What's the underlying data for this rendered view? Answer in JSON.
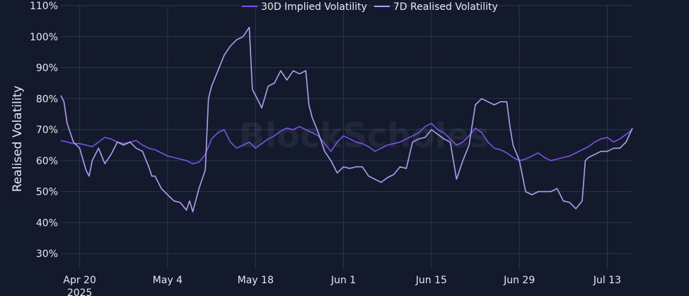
{
  "chart_data": {
    "type": "line",
    "title": "",
    "xlabel": "",
    "ylabel": "Realised Volatility",
    "y_unit": "%",
    "ylim": [
      25,
      110
    ],
    "xlim": [
      "2025-04-17",
      "2025-07-17"
    ],
    "grid": true,
    "legend_position": "top",
    "background_color": "#131a2c",
    "grid_color": "#2a3650",
    "x_ticks": [
      {
        "date": "2025-04-20",
        "label": "Apr 20",
        "sublabel": "2025"
      },
      {
        "date": "2025-05-04",
        "label": "May 4"
      },
      {
        "date": "2025-05-18",
        "label": "May 18"
      },
      {
        "date": "2025-06-01",
        "label": "Jun 1"
      },
      {
        "date": "2025-06-15",
        "label": "Jun 15"
      },
      {
        "date": "2025-06-29",
        "label": "Jun 29"
      },
      {
        "date": "2025-07-13",
        "label": "Jul 13"
      }
    ],
    "y_ticks": [
      {
        "value": 30,
        "label": "30%"
      },
      {
        "value": 40,
        "label": "40%"
      },
      {
        "value": 50,
        "label": "50%"
      },
      {
        "value": 60,
        "label": "60%"
      },
      {
        "value": 70,
        "label": "70%"
      },
      {
        "value": 80,
        "label": "80%"
      },
      {
        "value": 90,
        "label": "90%"
      },
      {
        "value": 100,
        "label": "100%"
      },
      {
        "value": 110,
        "label": "110%"
      }
    ],
    "series": [
      {
        "name": "30D Implied Volatility",
        "color": "#7b52e6",
        "points": [
          [
            "2025-04-17",
            66.5
          ],
          [
            "2025-04-18",
            66
          ],
          [
            "2025-04-19",
            65.5
          ],
          [
            "2025-04-20",
            65.5
          ],
          [
            "2025-04-21",
            65
          ],
          [
            "2025-04-22",
            64.5
          ],
          [
            "2025-04-23",
            66
          ],
          [
            "2025-04-24",
            67.5
          ],
          [
            "2025-04-25",
            67
          ],
          [
            "2025-04-26",
            66
          ],
          [
            "2025-04-27",
            65.5
          ],
          [
            "2025-04-28",
            66
          ],
          [
            "2025-04-29",
            66.5
          ],
          [
            "2025-04-30",
            65
          ],
          [
            "2025-05-01",
            64
          ],
          [
            "2025-05-02",
            63.5
          ],
          [
            "2025-05-03",
            62.5
          ],
          [
            "2025-05-04",
            61.5
          ],
          [
            "2025-05-05",
            61
          ],
          [
            "2025-05-06",
            60.5
          ],
          [
            "2025-05-07",
            60
          ],
          [
            "2025-05-08",
            59
          ],
          [
            "2025-05-09",
            59.5
          ],
          [
            "2025-05-10",
            62
          ],
          [
            "2025-05-11",
            67
          ],
          [
            "2025-05-12",
            69
          ],
          [
            "2025-05-13",
            70
          ],
          [
            "2025-05-14",
            66
          ],
          [
            "2025-05-15",
            64
          ],
          [
            "2025-05-16",
            65
          ],
          [
            "2025-05-17",
            66
          ],
          [
            "2025-05-18",
            64
          ],
          [
            "2025-05-19",
            65.5
          ],
          [
            "2025-05-20",
            67
          ],
          [
            "2025-05-21",
            68
          ],
          [
            "2025-05-22",
            69.5
          ],
          [
            "2025-05-23",
            70.5
          ],
          [
            "2025-05-24",
            70
          ],
          [
            "2025-05-25",
            71
          ],
          [
            "2025-05-26",
            70
          ],
          [
            "2025-05-27",
            69
          ],
          [
            "2025-05-28",
            68
          ],
          [
            "2025-05-29",
            65.5
          ],
          [
            "2025-05-30",
            63
          ],
          [
            "2025-05-31",
            66
          ],
          [
            "2025-06-01",
            68
          ],
          [
            "2025-06-02",
            67
          ],
          [
            "2025-06-03",
            66
          ],
          [
            "2025-06-04",
            65.5
          ],
          [
            "2025-06-05",
            64.5
          ],
          [
            "2025-06-06",
            63
          ],
          [
            "2025-06-07",
            64
          ],
          [
            "2025-06-08",
            65
          ],
          [
            "2025-06-09",
            65.5
          ],
          [
            "2025-06-10",
            66
          ],
          [
            "2025-06-11",
            67
          ],
          [
            "2025-06-12",
            68
          ],
          [
            "2025-06-13",
            69
          ],
          [
            "2025-06-14",
            71
          ],
          [
            "2025-06-15",
            72
          ],
          [
            "2025-06-16",
            70
          ],
          [
            "2025-06-17",
            69
          ],
          [
            "2025-06-18",
            67
          ],
          [
            "2025-06-19",
            65
          ],
          [
            "2025-06-20",
            66
          ],
          [
            "2025-06-21",
            68
          ],
          [
            "2025-06-22",
            70.5
          ],
          [
            "2025-06-23",
            69
          ],
          [
            "2025-06-24",
            66
          ],
          [
            "2025-06-25",
            64
          ],
          [
            "2025-06-26",
            63.5
          ],
          [
            "2025-06-27",
            62.5
          ],
          [
            "2025-06-28",
            61
          ],
          [
            "2025-06-29",
            60
          ],
          [
            "2025-06-30",
            60.5
          ],
          [
            "2025-07-01",
            61.5
          ],
          [
            "2025-07-02",
            62.5
          ],
          [
            "2025-07-03",
            61
          ],
          [
            "2025-07-04",
            60
          ],
          [
            "2025-07-05",
            60.5
          ],
          [
            "2025-07-06",
            61
          ],
          [
            "2025-07-07",
            61.5
          ],
          [
            "2025-07-08",
            62.5
          ],
          [
            "2025-07-09",
            63.5
          ],
          [
            "2025-07-10",
            64.5
          ],
          [
            "2025-07-11",
            66
          ],
          [
            "2025-07-12",
            67
          ],
          [
            "2025-07-13",
            67.5
          ],
          [
            "2025-07-14",
            66
          ],
          [
            "2025-07-15",
            67
          ],
          [
            "2025-07-16",
            68.5
          ],
          [
            "2025-07-17",
            70
          ]
        ]
      },
      {
        "name": "7D Realised Volatility",
        "color": "#b49cf2",
        "points": [
          [
            "2025-04-17",
            81
          ],
          [
            "2025-04-17.5",
            79
          ],
          [
            "2025-04-18",
            72
          ],
          [
            "2025-04-19",
            66
          ],
          [
            "2025-04-20",
            64
          ],
          [
            "2025-04-21",
            57
          ],
          [
            "2025-04-21.5",
            55
          ],
          [
            "2025-04-22",
            60
          ],
          [
            "2025-04-23",
            64
          ],
          [
            "2025-04-24",
            59
          ],
          [
            "2025-04-25",
            62
          ],
          [
            "2025-04-26",
            66
          ],
          [
            "2025-04-27",
            65
          ],
          [
            "2025-04-28",
            66
          ],
          [
            "2025-04-29",
            64
          ],
          [
            "2025-04-30",
            63
          ],
          [
            "2025-05-01",
            58
          ],
          [
            "2025-05-01.5",
            55
          ],
          [
            "2025-05-02",
            55
          ],
          [
            "2025-05-03",
            51
          ],
          [
            "2025-05-04",
            49
          ],
          [
            "2025-05-05",
            47
          ],
          [
            "2025-05-06",
            46.5
          ],
          [
            "2025-05-07",
            44
          ],
          [
            "2025-05-07.5",
            47
          ],
          [
            "2025-05-08",
            43.5
          ],
          [
            "2025-05-09",
            51
          ],
          [
            "2025-05-10",
            57
          ],
          [
            "2025-05-10.5",
            80
          ],
          [
            "2025-05-11",
            84
          ],
          [
            "2025-05-12",
            89
          ],
          [
            "2025-05-13",
            94
          ],
          [
            "2025-05-14",
            97
          ],
          [
            "2025-05-15",
            99
          ],
          [
            "2025-05-16",
            100
          ],
          [
            "2025-05-17",
            103
          ],
          [
            "2025-05-17.5",
            83
          ],
          [
            "2025-05-18",
            81
          ],
          [
            "2025-05-19",
            77
          ],
          [
            "2025-05-20",
            84
          ],
          [
            "2025-05-21",
            85
          ],
          [
            "2025-05-22",
            89
          ],
          [
            "2025-05-23",
            86
          ],
          [
            "2025-05-24",
            89
          ],
          [
            "2025-05-25",
            88
          ],
          [
            "2025-05-26",
            89
          ],
          [
            "2025-05-26.5",
            78
          ],
          [
            "2025-05-27",
            74
          ],
          [
            "2025-05-28",
            69
          ],
          [
            "2025-05-29",
            63
          ],
          [
            "2025-05-30",
            60
          ],
          [
            "2025-05-31",
            56
          ],
          [
            "2025-06-01",
            58
          ],
          [
            "2025-06-02",
            57.5
          ],
          [
            "2025-06-03",
            58
          ],
          [
            "2025-06-04",
            58
          ],
          [
            "2025-06-05",
            55
          ],
          [
            "2025-06-06",
            54
          ],
          [
            "2025-06-07",
            53
          ],
          [
            "2025-06-08",
            54.5
          ],
          [
            "2025-06-09",
            55.5
          ],
          [
            "2025-06-10",
            58
          ],
          [
            "2025-06-11",
            57.5
          ],
          [
            "2025-06-12",
            66
          ],
          [
            "2025-06-13",
            67
          ],
          [
            "2025-06-14",
            67.5
          ],
          [
            "2025-06-15",
            70
          ],
          [
            "2025-06-16",
            68.5
          ],
          [
            "2025-06-17",
            67
          ],
          [
            "2025-06-18",
            66
          ],
          [
            "2025-06-19",
            54
          ],
          [
            "2025-06-20",
            60
          ],
          [
            "2025-06-21",
            65
          ],
          [
            "2025-06-22",
            78
          ],
          [
            "2025-06-23",
            80
          ],
          [
            "2025-06-24",
            79
          ],
          [
            "2025-06-25",
            78
          ],
          [
            "2025-06-26",
            79
          ],
          [
            "2025-06-27",
            79
          ],
          [
            "2025-06-27.5",
            71
          ],
          [
            "2025-06-28",
            65
          ],
          [
            "2025-06-29",
            60
          ],
          [
            "2025-06-30",
            50
          ],
          [
            "2025-07-01",
            49
          ],
          [
            "2025-07-02",
            50
          ],
          [
            "2025-07-03",
            50
          ],
          [
            "2025-07-04",
            50
          ],
          [
            "2025-07-05",
            51
          ],
          [
            "2025-07-06",
            47
          ],
          [
            "2025-07-07",
            46.5
          ],
          [
            "2025-07-08",
            44.5
          ],
          [
            "2025-07-09",
            47
          ],
          [
            "2025-07-09.5",
            60
          ],
          [
            "2025-07-10",
            61
          ],
          [
            "2025-07-11",
            62
          ],
          [
            "2025-07-12",
            63
          ],
          [
            "2025-07-13",
            63
          ],
          [
            "2025-07-14",
            64
          ],
          [
            "2025-07-15",
            64
          ],
          [
            "2025-07-16",
            66
          ],
          [
            "2025-07-17",
            70.5
          ]
        ]
      }
    ],
    "watermark": "BlockScholes"
  }
}
